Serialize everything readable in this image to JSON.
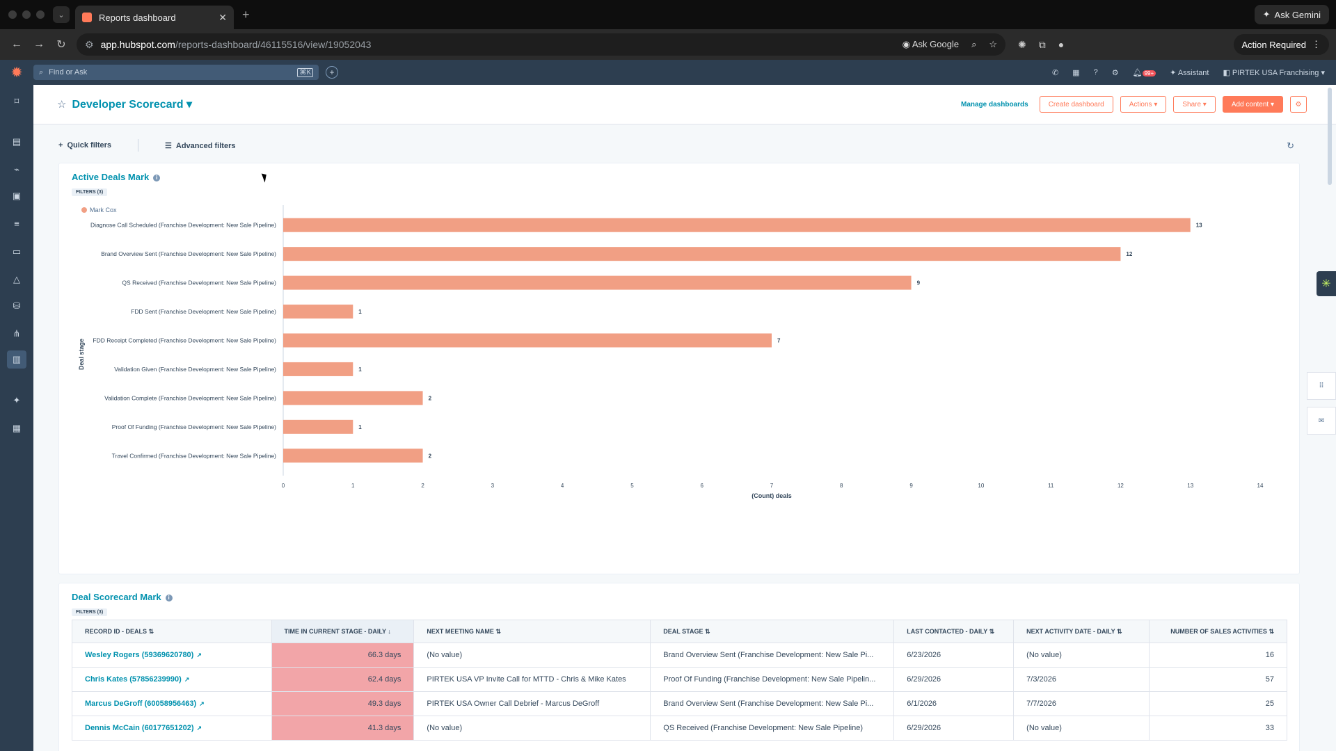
{
  "browser": {
    "tab_title": "Reports dashboard",
    "url_domain": "app.hubspot.com",
    "url_path": "/reports-dashboard/46115516/view/19052043",
    "ask_google": "Ask Google",
    "ask_gemini": "Ask Gemini",
    "action_required": "Action Required"
  },
  "hubspot_bar": {
    "search_placeholder": "Find or Ask",
    "search_shortcut": "⌘K",
    "assistant": "Assistant",
    "account": "PIRTEK USA Franchising",
    "notif_count": "99+"
  },
  "header": {
    "title": "Developer Scorecard",
    "manage": "Manage dashboards",
    "create": "Create dashboard",
    "actions": "Actions ▾",
    "share": "Share ▾",
    "add_content": "Add content ▾"
  },
  "filters": {
    "quick": "Quick filters",
    "advanced": "Advanced filters"
  },
  "chart_card": {
    "title": "Active Deals Mark",
    "filter_tag": "FILTERS (3)",
    "legend": "Mark Cox"
  },
  "chart_data": {
    "type": "bar",
    "orientation": "horizontal",
    "categories": [
      "Diagnose Call Scheduled (Franchise Development: New Sale Pipeline)",
      "Brand Overview Sent (Franchise Development: New Sale Pipeline)",
      "QS Received (Franchise Development: New Sale Pipeline)",
      "FDD Sent (Franchise Development: New Sale Pipeline)",
      "FDD Receipt Completed (Franchise Development: New Sale Pipeline)",
      "Validation Given (Franchise Development: New Sale Pipeline)",
      "Validation Complete (Franchise Development: New Sale Pipeline)",
      "Proof Of Funding (Franchise Development: New Sale Pipeline)",
      "Travel Confirmed (Franchise Development: New Sale Pipeline)"
    ],
    "series": [
      {
        "name": "Mark Cox",
        "values": [
          13,
          12,
          9,
          1,
          7,
          1,
          2,
          1,
          2
        ]
      }
    ],
    "xlabel": "(Count) deals",
    "ylabel": "Deal stage",
    "xlim": [
      0,
      14
    ],
    "xticks": [
      "0",
      "1",
      "2",
      "3",
      "4",
      "5",
      "6",
      "7",
      "8",
      "9",
      "10",
      "11",
      "12",
      "13",
      "14"
    ],
    "bar_color": "#f19f84",
    "grid": false,
    "legend_position": "top-left"
  },
  "table_card": {
    "title": "Deal Scorecard Mark",
    "filter_tag": "FILTERS (3)",
    "columns": [
      "RECORD ID - DEALS",
      "TIME IN CURRENT STAGE - DAILY",
      "NEXT MEETING NAME",
      "DEAL STAGE",
      "LAST CONTACTED - DAILY",
      "NEXT ACTIVITY DATE - DAILY",
      "NUMBER OF SALES ACTIVITIES"
    ],
    "rows": [
      [
        "Wesley Rogers (59369620780)",
        "66.3 days",
        "(No value)",
        "Brand Overview Sent (Franchise Development: New Sale Pi...",
        "6/23/2026",
        "(No value)",
        "16"
      ],
      [
        "Chris Kates (57856239990)",
        "62.4 days",
        "PIRTEK USA VP Invite Call for MTTD - Chris & Mike Kates",
        "Proof Of Funding (Franchise Development: New Sale Pipelin...",
        "6/29/2026",
        "7/3/2026",
        "57"
      ],
      [
        "Marcus DeGroff (60058956463)",
        "49.3 days",
        "PIRTEK USA Owner Call Debrief - Marcus DeGroff",
        "Brand Overview Sent (Franchise Development: New Sale Pi...",
        "6/1/2026",
        "7/7/2026",
        "25"
      ],
      [
        "Dennis McCain (60177651202)",
        "41.3 days",
        "(No value)",
        "QS Received (Franchise Development: New Sale Pipeline)",
        "6/29/2026",
        "(No value)",
        "33"
      ]
    ]
  },
  "colors": {
    "accent": "#ff7a59",
    "link": "#0091ae",
    "nav": "#2d3e50",
    "heat": "#f2a5a8"
  }
}
